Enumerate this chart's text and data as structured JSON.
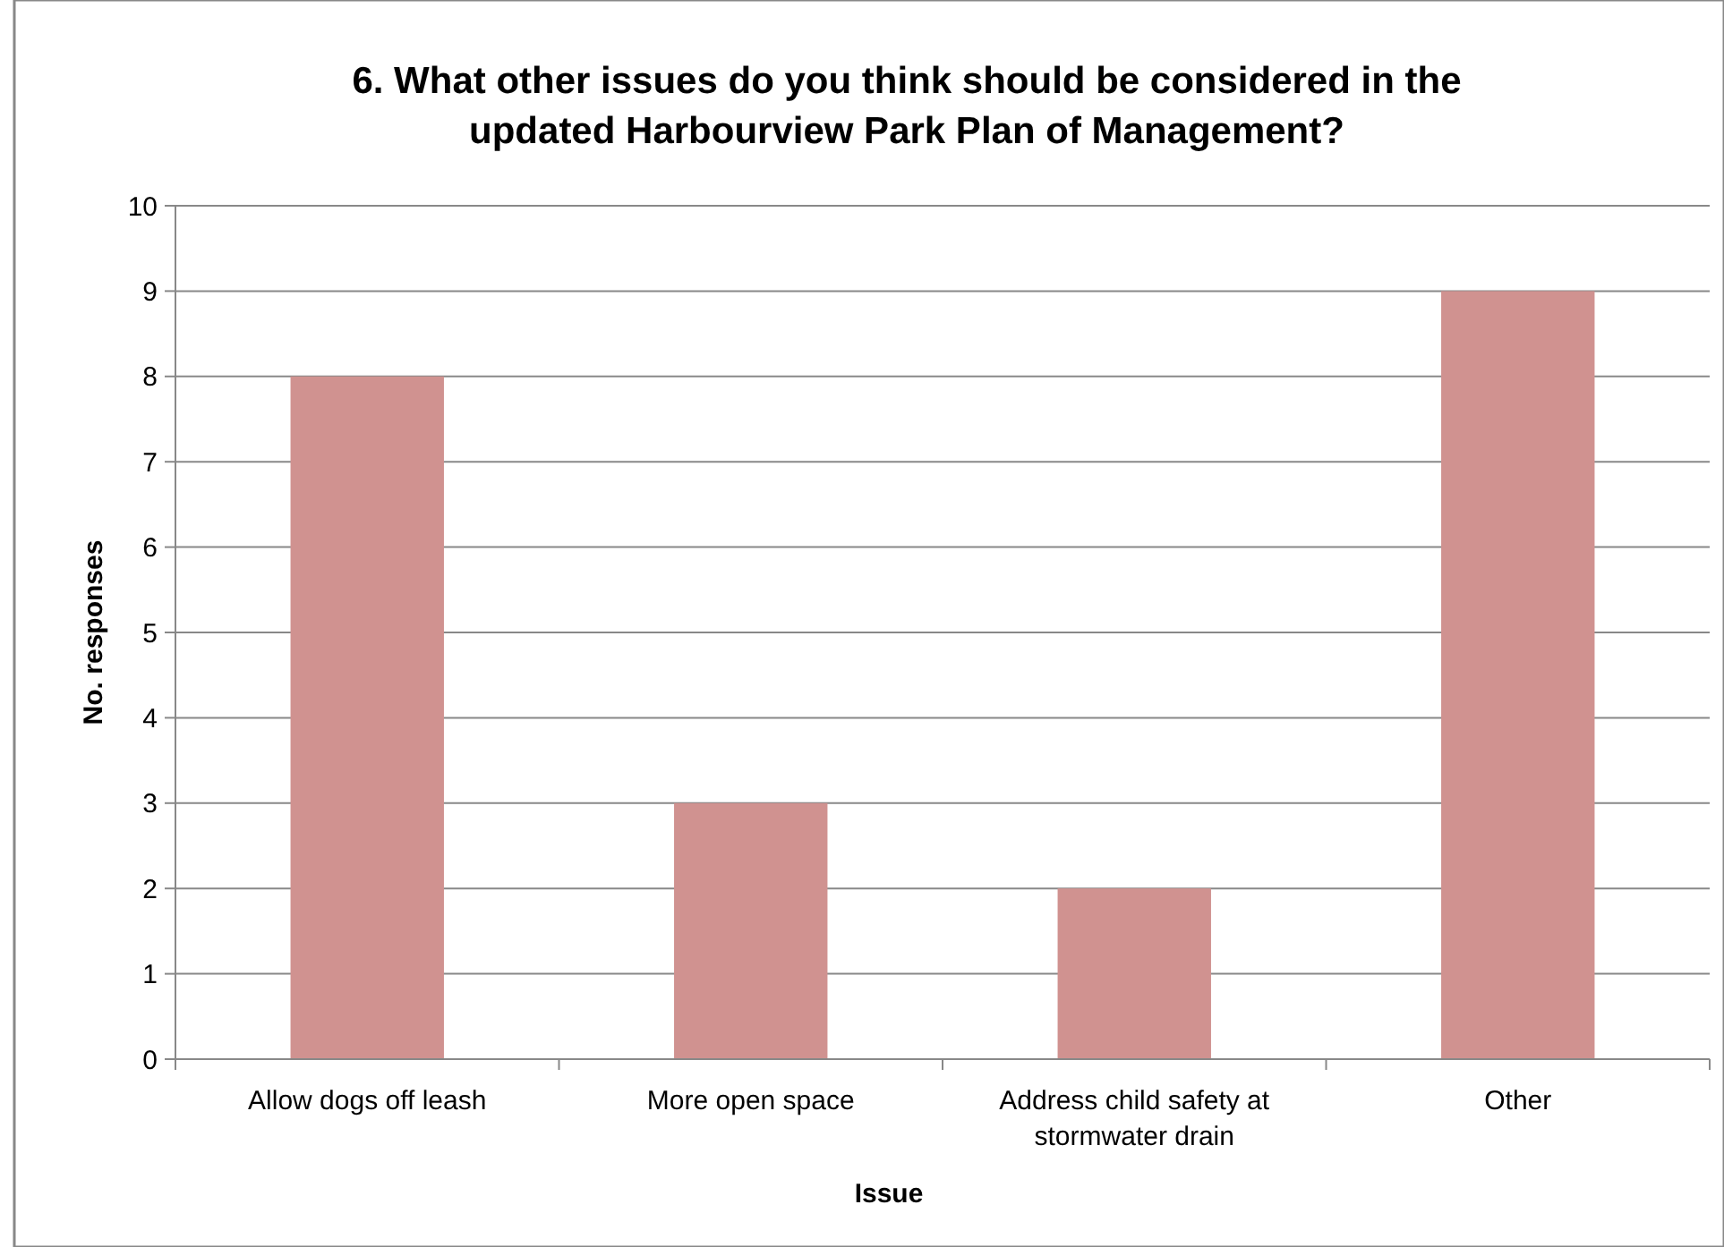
{
  "chart_data": {
    "type": "bar",
    "title": "6. What other issues do you think should be considered in the updated Harbourview Park Plan of Management?",
    "xlabel": "Issue",
    "ylabel": "No. responses",
    "categories": [
      "Allow dogs off leash",
      "More open space",
      "Address child safety at stormwater drain",
      "Other"
    ],
    "values": [
      8,
      3,
      2,
      9
    ],
    "color": "#d09290",
    "ylim": [
      0,
      10
    ],
    "yticks": [
      0,
      1,
      2,
      3,
      4,
      5,
      6,
      7,
      8,
      9,
      10
    ],
    "grid": "y"
  }
}
